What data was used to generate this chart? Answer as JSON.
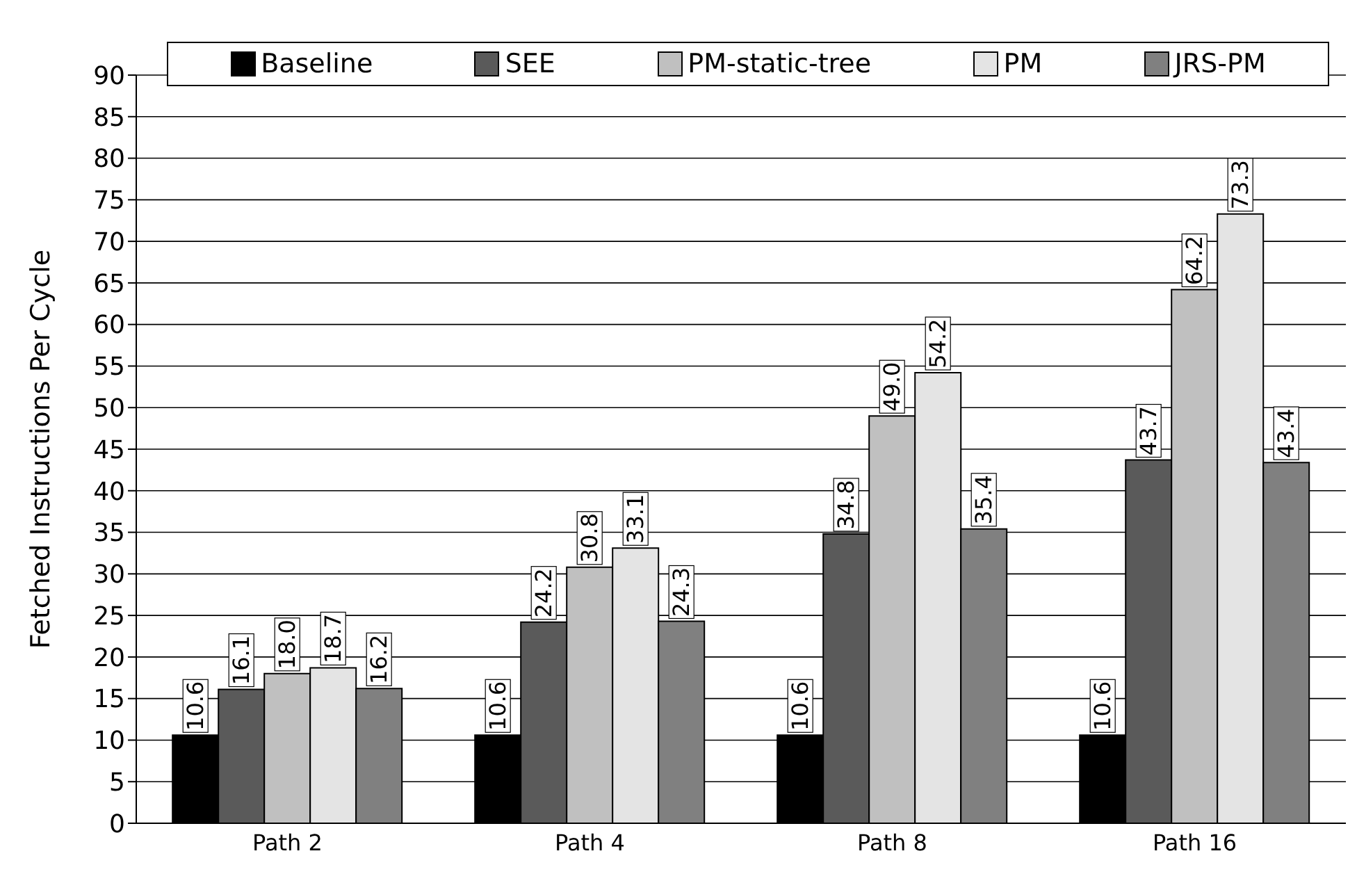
{
  "chart_data": {
    "type": "bar",
    "ylabel": "Fetched Instructions Per Cycle",
    "categories": [
      "Path 2",
      "Path 4",
      "Path 8",
      "Path 16"
    ],
    "series": [
      {
        "name": "Baseline",
        "color": "#000000",
        "values": [
          10.6,
          10.6,
          10.6,
          10.6
        ]
      },
      {
        "name": "SEE",
        "color": "#5a5a5a",
        "values": [
          16.1,
          24.2,
          34.8,
          43.7
        ]
      },
      {
        "name": "PM-static-tree",
        "color": "#c0c0c0",
        "values": [
          18.0,
          30.8,
          49.0,
          64.2
        ],
        "value_labels": [
          "18.0",
          "30.8",
          "49.0",
          "64.2"
        ]
      },
      {
        "name": "PM",
        "color": "#e4e4e4",
        "values": [
          18.7,
          33.1,
          54.2,
          73.3
        ]
      },
      {
        "name": "JRS-PM",
        "color": "#808080",
        "values": [
          16.2,
          24.3,
          35.4,
          43.4
        ]
      }
    ],
    "ylim": [
      0,
      90
    ],
    "yticks": [
      0,
      5,
      10,
      15,
      20,
      25,
      30,
      35,
      40,
      45,
      50,
      55,
      60,
      65,
      70,
      75,
      80,
      85,
      90
    ],
    "grid": "y",
    "legend": "top",
    "data_labels": true
  }
}
